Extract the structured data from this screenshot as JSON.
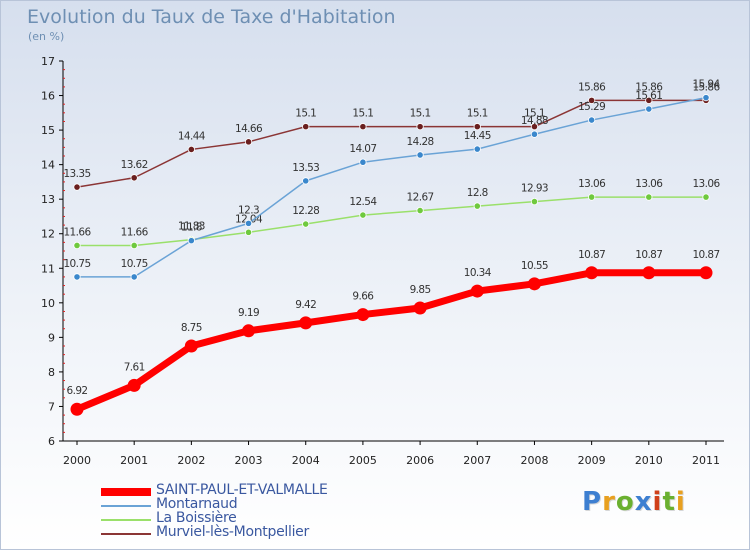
{
  "title": "Evolution du Taux de Taxe d'Habitation",
  "unit_label": "(en %)",
  "logo": {
    "text": "Proxiti",
    "letter_colors": [
      "#3d7fd1",
      "#e8a020",
      "#6ab030",
      "#3d7fd1",
      "#d0401a",
      "#6ab030",
      "#e8a020"
    ]
  },
  "chart_data": {
    "type": "line",
    "title": "Evolution du Taux de Taxe d'Habitation",
    "ylabel": "(en %)",
    "x": [
      "2000",
      "2001",
      "2002",
      "2003",
      "2004",
      "2005",
      "2006",
      "2007",
      "2008",
      "2009",
      "2010",
      "2011"
    ],
    "ylim": [
      6,
      17
    ],
    "yticks": [
      "6",
      "7",
      "8",
      "9",
      "10",
      "11",
      "12",
      "13",
      "14",
      "15",
      "16",
      "17"
    ],
    "grid": false,
    "legend": "bottom-left",
    "series": [
      {
        "name": "Murviel-lès-Montpellier",
        "color": "#8b3535",
        "values": [
          13.35,
          13.62,
          14.44,
          14.66,
          15.1,
          15.1,
          15.1,
          15.1,
          15.1,
          15.86,
          15.86,
          15.86
        ],
        "labels": [
          "13.35",
          "13.62",
          "14.44",
          "14.66",
          "15.1",
          "15.1",
          "15.1",
          "15.1",
          "15.1",
          "15.86",
          "15.86",
          "15.86"
        ]
      },
      {
        "name": "La Boissière",
        "color": "#8fdc63",
        "values": [
          11.66,
          11.66,
          11.83,
          12.04,
          12.28,
          12.54,
          12.67,
          12.8,
          12.93,
          13.06,
          13.06,
          13.06
        ],
        "labels": [
          "11.66",
          "11.66",
          "11.83",
          "12.04",
          "12.28",
          "12.54",
          "12.67",
          "12.8",
          "12.93",
          "13.06",
          "13.06",
          "13.06"
        ]
      },
      {
        "name": "Montarnaud",
        "color": "#6aa3d6",
        "values": [
          10.75,
          10.75,
          11.8,
          12.3,
          13.53,
          14.07,
          14.28,
          14.45,
          14.88,
          15.29,
          15.61,
          15.94
        ],
        "labels": [
          "10.75",
          "10.75",
          "11.8",
          "12.3",
          "13.53",
          "14.07",
          "14.28",
          "14.45",
          "14.88",
          "15.29",
          "15.61",
          "15.94"
        ]
      },
      {
        "name": "SAINT-PAUL-ET-VALMALLE",
        "color": "#ff0000",
        "values": [
          6.92,
          7.61,
          8.75,
          9.19,
          9.42,
          9.66,
          9.85,
          10.34,
          10.55,
          10.87,
          10.87,
          10.87
        ],
        "labels": [
          "6.92",
          "7.61",
          "8.75",
          "9.19",
          "9.42",
          "9.66",
          "9.85",
          "10.34",
          "10.55",
          "10.87",
          "10.87",
          "10.87"
        ]
      }
    ],
    "legend_order": [
      "SAINT-PAUL-ET-VALMALLE",
      "Montarnaud",
      "La Boissière",
      "Murviel-lès-Montpellier"
    ]
  }
}
